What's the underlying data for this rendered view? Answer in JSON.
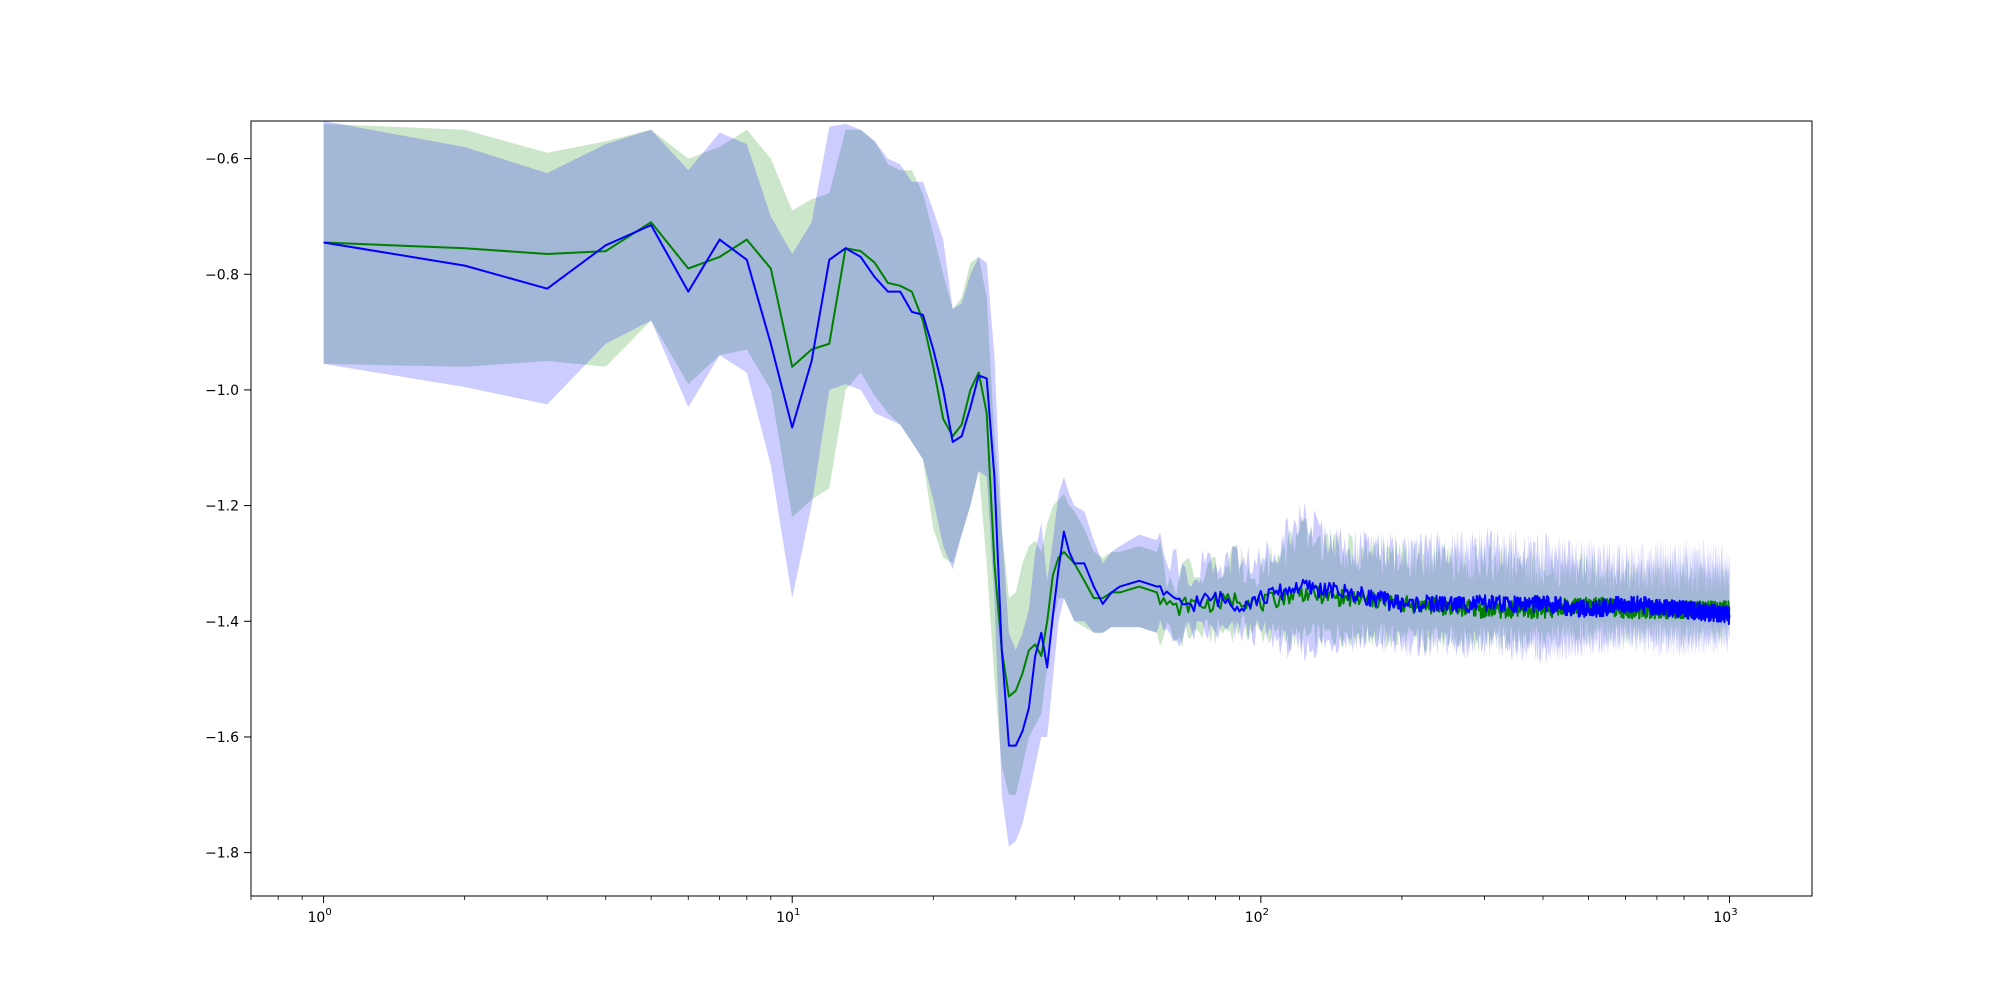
{
  "chart_data": {
    "type": "line",
    "title": "",
    "xlabel": "",
    "ylabel": "",
    "xscale": "log",
    "xlim": [
      0.7,
      1500
    ],
    "ylim": [
      -1.875,
      -0.535
    ],
    "grid": false,
    "x_ticks": [
      {
        "base": "10",
        "exp": "0",
        "value": 1
      },
      {
        "base": "10",
        "exp": "1",
        "value": 10
      },
      {
        "base": "10",
        "exp": "2",
        "value": 100
      },
      {
        "base": "10",
        "exp": "3",
        "value": 1000
      }
    ],
    "y_ticks": [
      {
        "label": "−0.6",
        "value": -0.6
      },
      {
        "label": "−0.8",
        "value": -0.8
      },
      {
        "label": "−1.0",
        "value": -1.0
      },
      {
        "label": "−1.2",
        "value": -1.2
      },
      {
        "label": "−1.4",
        "value": -1.4
      },
      {
        "label": "−1.6",
        "value": -1.6
      },
      {
        "label": "−1.8",
        "value": -1.8
      }
    ],
    "series": [
      {
        "color": "#008000",
        "band_color": "#008000",
        "band_opacity": 0.2,
        "x": [
          1,
          2,
          3,
          4,
          5,
          6,
          7,
          8,
          9,
          10,
          11,
          12,
          13,
          14,
          15,
          16,
          17,
          18,
          19,
          20,
          21,
          22,
          23,
          24,
          25,
          26,
          27,
          28,
          29,
          30,
          31,
          32,
          33,
          34,
          35,
          36,
          37,
          38,
          39,
          40,
          42,
          44,
          46,
          48,
          50,
          55,
          60,
          65,
          70,
          80,
          90,
          100,
          120,
          150,
          200,
          300,
          400,
          500,
          600,
          800,
          1000
        ],
        "y": [
          -0.745,
          -0.755,
          -0.765,
          -0.76,
          -0.71,
          -0.79,
          -0.77,
          -0.74,
          -0.79,
          -0.96,
          -0.93,
          -0.92,
          -0.755,
          -0.76,
          -0.78,
          -0.815,
          -0.82,
          -0.83,
          -0.88,
          -0.96,
          -1.05,
          -1.08,
          -1.06,
          -1.0,
          -0.97,
          -1.04,
          -1.3,
          -1.45,
          -1.53,
          -1.52,
          -1.49,
          -1.45,
          -1.44,
          -1.46,
          -1.4,
          -1.32,
          -1.29,
          -1.28,
          -1.29,
          -1.3,
          -1.33,
          -1.36,
          -1.36,
          -1.35,
          -1.35,
          -1.34,
          -1.35,
          -1.38,
          -1.37,
          -1.37,
          -1.36,
          -1.37,
          -1.35,
          -1.36,
          -1.37,
          -1.38,
          -1.38,
          -1.37,
          -1.38,
          -1.38,
          -1.38
        ],
        "y_low": [
          -0.955,
          -0.96,
          -0.95,
          -0.96,
          -0.88,
          -0.99,
          -0.94,
          -0.93,
          -1.0,
          -1.22,
          -1.19,
          -1.17,
          -1.0,
          -0.97,
          -1.01,
          -1.04,
          -1.06,
          -1.09,
          -1.12,
          -1.24,
          -1.29,
          -1.3,
          -1.25,
          -1.2,
          -1.14,
          -1.3,
          -1.5,
          -1.65,
          -1.7,
          -1.7,
          -1.65,
          -1.6,
          -1.58,
          -1.56,
          -1.48,
          -1.4,
          -1.36,
          -1.36,
          -1.38,
          -1.4,
          -1.41,
          -1.42,
          -1.42,
          -1.41,
          -1.41,
          -1.41,
          -1.42,
          -1.43,
          -1.42,
          -1.42,
          -1.41,
          -1.42,
          -1.43,
          -1.42,
          -1.43,
          -1.43,
          -1.43,
          -1.42,
          -1.42,
          -1.42,
          -1.42
        ],
        "y_high": [
          -0.54,
          -0.55,
          -0.59,
          -0.57,
          -0.55,
          -0.6,
          -0.58,
          -0.55,
          -0.6,
          -0.69,
          -0.67,
          -0.66,
          -0.55,
          -0.55,
          -0.57,
          -0.61,
          -0.62,
          -0.62,
          -0.66,
          -0.73,
          -0.8,
          -0.86,
          -0.84,
          -0.78,
          -0.77,
          -0.84,
          -1.08,
          -1.24,
          -1.36,
          -1.35,
          -1.3,
          -1.27,
          -1.26,
          -1.28,
          -1.23,
          -1.2,
          -1.19,
          -1.18,
          -1.2,
          -1.21,
          -1.24,
          -1.28,
          -1.29,
          -1.28,
          -1.28,
          -1.27,
          -1.28,
          -1.33,
          -1.32,
          -1.31,
          -1.3,
          -1.31,
          -1.25,
          -1.28,
          -1.29,
          -1.3,
          -1.31,
          -1.31,
          -1.32,
          -1.32,
          -1.32
        ]
      },
      {
        "color": "#0000ff",
        "band_color": "#0000ff",
        "band_opacity": 0.2,
        "x": [
          1,
          2,
          3,
          4,
          5,
          6,
          7,
          8,
          9,
          10,
          11,
          12,
          13,
          14,
          15,
          16,
          17,
          18,
          19,
          20,
          21,
          22,
          23,
          24,
          25,
          26,
          27,
          28,
          29,
          30,
          31,
          32,
          33,
          34,
          35,
          36,
          37,
          38,
          39,
          40,
          42,
          44,
          46,
          48,
          50,
          55,
          60,
          65,
          70,
          80,
          90,
          100,
          120,
          150,
          200,
          300,
          400,
          500,
          600,
          800,
          1000
        ],
        "y": [
          -0.745,
          -0.785,
          -0.825,
          -0.75,
          -0.715,
          -0.83,
          -0.74,
          -0.775,
          -0.92,
          -1.065,
          -0.95,
          -0.775,
          -0.755,
          -0.77,
          -0.805,
          -0.83,
          -0.83,
          -0.865,
          -0.87,
          -0.93,
          -1.0,
          -1.09,
          -1.08,
          -1.03,
          -0.975,
          -0.98,
          -1.15,
          -1.45,
          -1.615,
          -1.615,
          -1.59,
          -1.55,
          -1.46,
          -1.42,
          -1.48,
          -1.39,
          -1.31,
          -1.245,
          -1.28,
          -1.3,
          -1.3,
          -1.34,
          -1.37,
          -1.35,
          -1.34,
          -1.33,
          -1.34,
          -1.37,
          -1.37,
          -1.36,
          -1.37,
          -1.36,
          -1.34,
          -1.35,
          -1.37,
          -1.37,
          -1.37,
          -1.38,
          -1.37,
          -1.38,
          -1.39
        ],
        "y_low": [
          -0.955,
          -0.995,
          -1.025,
          -0.92,
          -0.88,
          -1.03,
          -0.94,
          -0.97,
          -1.13,
          -1.36,
          -1.2,
          -1.0,
          -0.99,
          -1.0,
          -1.04,
          -1.05,
          -1.06,
          -1.09,
          -1.12,
          -1.19,
          -1.27,
          -1.31,
          -1.25,
          -1.2,
          -1.14,
          -1.15,
          -1.36,
          -1.7,
          -1.79,
          -1.78,
          -1.75,
          -1.7,
          -1.65,
          -1.6,
          -1.6,
          -1.5,
          -1.4,
          -1.36,
          -1.38,
          -1.4,
          -1.4,
          -1.42,
          -1.42,
          -1.41,
          -1.41,
          -1.41,
          -1.42,
          -1.43,
          -1.42,
          -1.42,
          -1.42,
          -1.42,
          -1.45,
          -1.43,
          -1.44,
          -1.44,
          -1.45,
          -1.44,
          -1.43,
          -1.44,
          -1.43
        ],
        "y_high": [
          -0.535,
          -0.58,
          -0.625,
          -0.575,
          -0.55,
          -0.62,
          -0.555,
          -0.575,
          -0.7,
          -0.765,
          -0.71,
          -0.545,
          -0.54,
          -0.55,
          -0.57,
          -0.6,
          -0.61,
          -0.64,
          -0.64,
          -0.69,
          -0.74,
          -0.86,
          -0.85,
          -0.8,
          -0.77,
          -0.78,
          -0.94,
          -1.24,
          -1.42,
          -1.45,
          -1.42,
          -1.38,
          -1.28,
          -1.23,
          -1.33,
          -1.26,
          -1.18,
          -1.15,
          -1.18,
          -1.2,
          -1.21,
          -1.26,
          -1.3,
          -1.28,
          -1.27,
          -1.25,
          -1.26,
          -1.3,
          -1.31,
          -1.3,
          -1.29,
          -1.3,
          -1.22,
          -1.27,
          -1.28,
          -1.27,
          -1.28,
          -1.29,
          -1.3,
          -1.29,
          -1.3
        ]
      }
    ]
  }
}
